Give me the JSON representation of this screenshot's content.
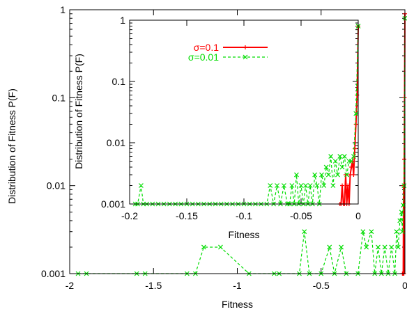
{
  "chart_data": [
    {
      "type": "line",
      "panel": "main",
      "xlabel": "Fitness",
      "ylabel": "Distribution of Fitness P(F)",
      "xlim": [
        -2,
        0
      ],
      "ylim": [
        0.001,
        1
      ],
      "yscale": "log",
      "xticks": [
        -2,
        -1.5,
        -1,
        -0.5,
        0
      ],
      "xtick_labels": [
        "-2",
        "-1.5",
        "-1",
        "-0.5",
        "0"
      ],
      "yticks": [
        0.001,
        0.01,
        0.1,
        1
      ],
      "ytick_labels": [
        "0.001",
        "0.01",
        "0.1",
        "1"
      ],
      "grid": false,
      "series": [
        {
          "name": "σ=0.1",
          "color": "#ff0000",
          "marker": "plus",
          "dash": "solid",
          "x": [
            -0.015,
            -0.01,
            -0.008,
            -0.006,
            -0.004,
            -0.002,
            0.0
          ],
          "y": [
            0.001,
            0.001,
            0.01,
            0.001,
            0.02,
            0.1,
            0.9
          ]
        },
        {
          "name": "σ=0.01",
          "color": "#00dd00",
          "marker": "x",
          "dash": "dashed",
          "x": [
            -1.95,
            -1.9,
            -1.6,
            -1.55,
            -1.3,
            -1.25,
            -1.2,
            -1.1,
            -0.93,
            -0.78,
            -0.75,
            -0.63,
            -0.6,
            -0.57,
            -0.5,
            -0.45,
            -0.42,
            -0.38,
            -0.35,
            -0.28,
            -0.25,
            -0.23,
            -0.2,
            -0.18,
            -0.16,
            -0.14,
            -0.12,
            -0.1,
            -0.08,
            -0.06,
            -0.05,
            -0.04,
            -0.03,
            -0.02,
            -0.015,
            -0.01,
            -0.005,
            0.0
          ],
          "y": [
            0.001,
            0.001,
            0.001,
            0.001,
            0.001,
            0.001,
            0.002,
            0.002,
            0.001,
            0.001,
            0.001,
            0.001,
            0.003,
            0.001,
            0.001,
            0.002,
            0.001,
            0.002,
            0.001,
            0.001,
            0.003,
            0.002,
            0.003,
            0.001,
            0.002,
            0.001,
            0.002,
            0.001,
            0.002,
            0.001,
            0.003,
            0.002,
            0.004,
            0.005,
            0.003,
            0.006,
            0.01,
            0.8
          ]
        }
      ]
    },
    {
      "type": "line",
      "panel": "inset",
      "xlabel": "Fitness",
      "ylabel": "Distribution of Fitness P(F)",
      "xlim": [
        -0.2,
        0
      ],
      "ylim": [
        0.001,
        1
      ],
      "yscale": "log",
      "xticks": [
        -0.2,
        -0.15,
        -0.1,
        -0.05,
        0
      ],
      "xtick_labels": [
        "-0.2",
        "-0.15",
        "-0.1",
        "-0.05",
        "0"
      ],
      "yticks": [
        0.001,
        0.01,
        0.1,
        1
      ],
      "ytick_labels": [
        "0.001",
        "0.01",
        "0.1",
        "1"
      ],
      "grid": false,
      "legend_position": "top-left",
      "series": [
        {
          "name": "σ=0.1",
          "color": "#ff0000",
          "marker": "plus",
          "dash": "solid",
          "x": [
            -0.016,
            -0.015,
            -0.014,
            -0.013,
            -0.012,
            -0.011,
            -0.01,
            -0.009,
            -0.008,
            -0.007,
            -0.006,
            -0.005,
            -0.004,
            -0.003,
            -0.002,
            -0.001,
            0.0
          ],
          "y": [
            0.001,
            0.001,
            0.002,
            0.001,
            0.001,
            0.003,
            0.001,
            0.002,
            0.001,
            0.003,
            0.004,
            0.005,
            0.003,
            0.008,
            0.02,
            0.06,
            0.8
          ]
        },
        {
          "name": "σ=0.01",
          "color": "#00dd00",
          "marker": "x",
          "dash": "dashed",
          "x": [
            -0.195,
            -0.193,
            -0.19,
            -0.188,
            -0.185,
            -0.18,
            -0.175,
            -0.17,
            -0.165,
            -0.16,
            -0.155,
            -0.15,
            -0.145,
            -0.14,
            -0.135,
            -0.13,
            -0.125,
            -0.12,
            -0.115,
            -0.11,
            -0.105,
            -0.1,
            -0.095,
            -0.09,
            -0.085,
            -0.08,
            -0.077,
            -0.074,
            -0.071,
            -0.068,
            -0.065,
            -0.062,
            -0.06,
            -0.058,
            -0.056,
            -0.054,
            -0.052,
            -0.05,
            -0.048,
            -0.046,
            -0.044,
            -0.042,
            -0.04,
            -0.038,
            -0.036,
            -0.034,
            -0.032,
            -0.03,
            -0.028,
            -0.026,
            -0.024,
            -0.022,
            -0.02,
            -0.018,
            -0.016,
            -0.014,
            -0.012,
            -0.01,
            -0.008,
            -0.006,
            -0.004,
            -0.002,
            0.0
          ],
          "y": [
            0.001,
            0.001,
            0.002,
            0.001,
            0.001,
            0.001,
            0.001,
            0.001,
            0.001,
            0.001,
            0.001,
            0.001,
            0.001,
            0.001,
            0.001,
            0.001,
            0.001,
            0.001,
            0.001,
            0.001,
            0.001,
            0.001,
            0.001,
            0.001,
            0.001,
            0.001,
            0.002,
            0.001,
            0.002,
            0.001,
            0.002,
            0.001,
            0.001,
            0.002,
            0.001,
            0.003,
            0.001,
            0.002,
            0.001,
            0.002,
            0.001,
            0.002,
            0.001,
            0.003,
            0.002,
            0.001,
            0.003,
            0.002,
            0.004,
            0.003,
            0.006,
            0.002,
            0.005,
            0.003,
            0.006,
            0.004,
            0.006,
            0.003,
            0.005,
            0.005,
            0.006,
            0.03,
            0.8
          ]
        }
      ]
    }
  ]
}
